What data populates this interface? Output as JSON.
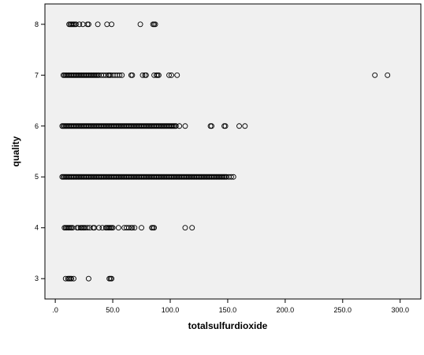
{
  "chart_data": {
    "type": "scatter",
    "title": "",
    "xlabel": "totalsulfurdioxide",
    "ylabel": "quality",
    "xlim": [
      -9,
      318
    ],
    "ylim": [
      2.6,
      8.4
    ],
    "x_ticks": [
      0,
      50,
      100,
      150,
      200,
      250,
      300
    ],
    "x_tick_labels": [
      ".0",
      "50.0",
      "100.0",
      "150.0",
      "200.0",
      "250.0",
      "300.0"
    ],
    "y_ticks": [
      3,
      4,
      5,
      6,
      7,
      8
    ],
    "y_tick_labels": [
      "3",
      "4",
      "5",
      "6",
      "7",
      "8"
    ],
    "grid": false,
    "plot_background": "#f0f0f0",
    "marker": "hollow-circle",
    "marker_color": "#000000",
    "series": [
      {
        "values": [
          {
            "y": 8,
            "x": [
              12,
              13,
              14,
              15,
              16,
              17,
              18,
              21,
              24,
              28,
              29,
              37,
              45,
              49,
              74,
              85,
              86,
              87
            ]
          },
          {
            "y": 7,
            "x": [
              7,
              8,
              9,
              10,
              11,
              12,
              13,
              14,
              15,
              16,
              17,
              18,
              19,
              20,
              21,
              22,
              23,
              24,
              25,
              26,
              27,
              28,
              29,
              30,
              31,
              32,
              33,
              34,
              35,
              36,
              37,
              38,
              40,
              42,
              44,
              46,
              47,
              48,
              50,
              52,
              54,
              56,
              58,
              66,
              67,
              76,
              78,
              79,
              86,
              88,
              89,
              90,
              99,
              101,
              106,
              278,
              289
            ]
          },
          {
            "y": 6,
            "x": [
              6,
              7,
              8,
              9,
              10,
              11,
              12,
              13,
              14,
              15,
              16,
              17,
              18,
              19,
              20,
              21,
              22,
              23,
              24,
              25,
              26,
              27,
              28,
              29,
              30,
              31,
              32,
              33,
              34,
              35,
              36,
              37,
              38,
              39,
              40,
              41,
              42,
              43,
              44,
              45,
              46,
              47,
              48,
              49,
              50,
              51,
              52,
              53,
              54,
              55,
              56,
              57,
              58,
              59,
              60,
              61,
              62,
              63,
              64,
              65,
              66,
              67,
              68,
              69,
              70,
              71,
              72,
              73,
              74,
              75,
              76,
              77,
              78,
              79,
              80,
              81,
              82,
              83,
              84,
              85,
              86,
              87,
              88,
              89,
              90,
              91,
              92,
              93,
              94,
              95,
              96,
              97,
              98,
              99,
              100,
              101,
              102,
              103,
              104,
              105,
              108,
              113,
              135,
              136,
              147,
              148,
              160,
              165
            ]
          },
          {
            "y": 5,
            "x": [
              6,
              7,
              8,
              9,
              10,
              11,
              12,
              13,
              14,
              15,
              16,
              17,
              18,
              19,
              20,
              21,
              22,
              23,
              24,
              25,
              26,
              27,
              28,
              29,
              30,
              31,
              32,
              33,
              34,
              35,
              36,
              37,
              38,
              39,
              40,
              41,
              42,
              43,
              44,
              45,
              46,
              47,
              48,
              49,
              50,
              51,
              52,
              53,
              54,
              55,
              56,
              57,
              58,
              59,
              60,
              61,
              62,
              63,
              64,
              65,
              66,
              67,
              68,
              69,
              70,
              71,
              72,
              73,
              74,
              75,
              76,
              77,
              78,
              79,
              80,
              81,
              82,
              83,
              84,
              85,
              86,
              87,
              88,
              89,
              90,
              91,
              92,
              93,
              94,
              95,
              96,
              97,
              98,
              99,
              100,
              101,
              102,
              103,
              104,
              105,
              106,
              107,
              108,
              109,
              110,
              111,
              112,
              113,
              114,
              115,
              116,
              117,
              118,
              119,
              120,
              121,
              122,
              123,
              124,
              125,
              126,
              127,
              128,
              129,
              130,
              131,
              132,
              133,
              134,
              135,
              136,
              137,
              138,
              139,
              140,
              141,
              142,
              143,
              144,
              145,
              146,
              147,
              148,
              149,
              151,
              153,
              155
            ]
          },
          {
            "y": 4,
            "x": [
              8,
              9,
              10,
              11,
              12,
              13,
              14,
              15,
              19,
              20,
              22,
              23,
              24,
              25,
              26,
              28,
              30,
              33,
              34,
              38,
              41,
              44,
              45,
              46,
              47,
              48,
              49,
              50,
              55,
              60,
              62,
              64,
              66,
              67,
              69,
              75,
              84,
              85,
              86,
              113,
              119
            ]
          },
          {
            "y": 3,
            "x": [
              9,
              11,
              12,
              13,
              14,
              16,
              29,
              47,
              48,
              49
            ]
          }
        ]
      }
    ]
  }
}
